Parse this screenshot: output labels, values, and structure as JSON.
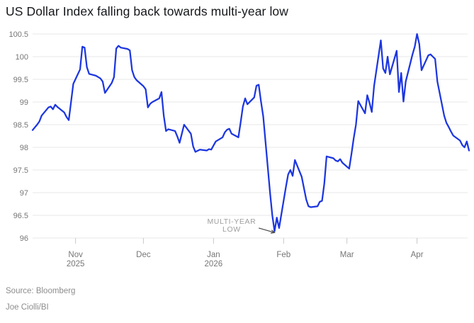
{
  "chart_data": {
    "type": "line",
    "title": "US Dollar Index falling back towards multi-year low",
    "xlabel": "",
    "ylabel": "",
    "ylim": [
      96,
      100.5
    ],
    "x_domain": [
      "2025-10-13",
      "2026-04-24"
    ],
    "grid": "horizontal",
    "legend": "none",
    "yticks": [
      {
        "v": 100.5,
        "label": "100.5"
      },
      {
        "v": 100,
        "label": "100"
      },
      {
        "v": 99.5,
        "label": "99.5"
      },
      {
        "v": 99,
        "label": "99"
      },
      {
        "v": 98.5,
        "label": "98.5"
      },
      {
        "v": 98,
        "label": "98"
      },
      {
        "v": 97.5,
        "label": "97.5"
      },
      {
        "v": 97,
        "label": "97"
      },
      {
        "v": 96.5,
        "label": "96.5"
      },
      {
        "v": 96,
        "label": "96"
      }
    ],
    "xticks": [
      {
        "date": "2025-11-01",
        "lines": [
          "Nov",
          "2025"
        ]
      },
      {
        "date": "2025-12-01",
        "lines": [
          "Dec"
        ]
      },
      {
        "date": "2026-01-01",
        "lines": [
          "Jan",
          "2026"
        ]
      },
      {
        "date": "2026-02-01",
        "lines": [
          "Feb"
        ]
      },
      {
        "date": "2026-03-01",
        "lines": [
          "Mar"
        ]
      },
      {
        "date": "2026-04-01",
        "lines": [
          "Apr"
        ]
      }
    ],
    "series": [
      {
        "name": "US Dollar Index",
        "color": "#1c36e0",
        "points": [
          [
            "2025-10-13",
            98.38
          ],
          [
            "2025-10-14",
            98.44
          ],
          [
            "2025-10-15",
            98.5
          ],
          [
            "2025-10-16",
            98.57
          ],
          [
            "2025-10-17",
            98.7
          ],
          [
            "2025-10-20",
            98.88
          ],
          [
            "2025-10-21",
            98.9
          ],
          [
            "2025-10-22",
            98.84
          ],
          [
            "2025-10-23",
            98.94
          ],
          [
            "2025-10-24",
            98.89
          ],
          [
            "2025-10-27",
            98.77
          ],
          [
            "2025-10-28",
            98.67
          ],
          [
            "2025-10-29",
            98.6
          ],
          [
            "2025-10-30",
            99.0
          ],
          [
            "2025-10-31",
            99.4
          ],
          [
            "2025-11-03",
            99.72
          ],
          [
            "2025-11-04",
            100.22
          ],
          [
            "2025-11-05",
            100.2
          ],
          [
            "2025-11-06",
            99.77
          ],
          [
            "2025-11-07",
            99.62
          ],
          [
            "2025-11-10",
            99.58
          ],
          [
            "2025-11-11",
            99.55
          ],
          [
            "2025-11-12",
            99.52
          ],
          [
            "2025-11-13",
            99.45
          ],
          [
            "2025-11-14",
            99.2
          ],
          [
            "2025-11-17",
            99.42
          ],
          [
            "2025-11-18",
            99.55
          ],
          [
            "2025-11-19",
            100.18
          ],
          [
            "2025-11-20",
            100.24
          ],
          [
            "2025-11-21",
            100.2
          ],
          [
            "2025-11-24",
            100.17
          ],
          [
            "2025-11-25",
            100.14
          ],
          [
            "2025-11-26",
            99.7
          ],
          [
            "2025-11-27",
            99.55
          ],
          [
            "2025-11-28",
            99.48
          ],
          [
            "2025-12-01",
            99.35
          ],
          [
            "2025-12-02",
            99.28
          ],
          [
            "2025-12-03",
            98.88
          ],
          [
            "2025-12-04",
            98.96
          ],
          [
            "2025-12-05",
            99.0
          ],
          [
            "2025-12-08",
            99.08
          ],
          [
            "2025-12-09",
            99.22
          ],
          [
            "2025-12-10",
            98.7
          ],
          [
            "2025-12-11",
            98.36
          ],
          [
            "2025-12-12",
            98.4
          ],
          [
            "2025-12-15",
            98.36
          ],
          [
            "2025-12-16",
            98.24
          ],
          [
            "2025-12-17",
            98.1
          ],
          [
            "2025-12-18",
            98.3
          ],
          [
            "2025-12-19",
            98.5
          ],
          [
            "2025-12-22",
            98.3
          ],
          [
            "2025-12-23",
            98.02
          ],
          [
            "2025-12-24",
            97.9
          ],
          [
            "2025-12-26",
            97.95
          ],
          [
            "2025-12-29",
            97.93
          ],
          [
            "2025-12-30",
            97.96
          ],
          [
            "2025-12-31",
            97.95
          ],
          [
            "2026-01-02",
            98.13
          ],
          [
            "2026-01-05",
            98.22
          ],
          [
            "2026-01-06",
            98.33
          ],
          [
            "2026-01-07",
            98.39
          ],
          [
            "2026-01-08",
            98.41
          ],
          [
            "2026-01-09",
            98.3
          ],
          [
            "2026-01-12",
            98.22
          ],
          [
            "2026-01-13",
            98.55
          ],
          [
            "2026-01-14",
            98.9
          ],
          [
            "2026-01-15",
            99.08
          ],
          [
            "2026-01-16",
            98.95
          ],
          [
            "2026-01-19",
            99.1
          ],
          [
            "2026-01-20",
            99.36
          ],
          [
            "2026-01-21",
            99.38
          ],
          [
            "2026-01-22",
            99.01
          ],
          [
            "2026-01-23",
            98.68
          ],
          [
            "2026-01-26",
            97.0
          ],
          [
            "2026-01-27",
            96.5
          ],
          [
            "2026-01-28",
            96.15
          ],
          [
            "2026-01-29",
            96.45
          ],
          [
            "2026-01-30",
            96.22
          ],
          [
            "2026-02-02",
            97.12
          ],
          [
            "2026-02-03",
            97.4
          ],
          [
            "2026-02-04",
            97.5
          ],
          [
            "2026-02-05",
            97.37
          ],
          [
            "2026-02-06",
            97.72
          ],
          [
            "2026-02-09",
            97.35
          ],
          [
            "2026-02-10",
            97.1
          ],
          [
            "2026-02-11",
            96.85
          ],
          [
            "2026-02-12",
            96.7
          ],
          [
            "2026-02-13",
            96.68
          ],
          [
            "2026-02-16",
            96.7
          ],
          [
            "2026-02-17",
            96.8
          ],
          [
            "2026-02-18",
            96.82
          ],
          [
            "2026-02-19",
            97.2
          ],
          [
            "2026-02-20",
            97.8
          ],
          [
            "2026-02-23",
            97.76
          ],
          [
            "2026-02-24",
            97.71
          ],
          [
            "2026-02-25",
            97.69
          ],
          [
            "2026-02-26",
            97.74
          ],
          [
            "2026-02-27",
            97.66
          ],
          [
            "2026-03-02",
            97.53
          ],
          [
            "2026-03-03",
            97.85
          ],
          [
            "2026-03-04",
            98.2
          ],
          [
            "2026-03-05",
            98.5
          ],
          [
            "2026-03-06",
            99.02
          ],
          [
            "2026-03-09",
            98.75
          ],
          [
            "2026-03-10",
            99.15
          ],
          [
            "2026-03-11",
            98.98
          ],
          [
            "2026-03-12",
            98.78
          ],
          [
            "2026-03-13",
            99.35
          ],
          [
            "2026-03-16",
            100.36
          ],
          [
            "2026-03-17",
            99.74
          ],
          [
            "2026-03-18",
            99.64
          ],
          [
            "2026-03-19",
            100.0
          ],
          [
            "2026-03-20",
            99.61
          ],
          [
            "2026-03-23",
            100.13
          ],
          [
            "2026-03-24",
            99.22
          ],
          [
            "2026-03-25",
            99.64
          ],
          [
            "2026-03-26",
            99.01
          ],
          [
            "2026-03-27",
            99.45
          ],
          [
            "2026-03-30",
            100.05
          ],
          [
            "2026-03-31",
            100.22
          ],
          [
            "2026-04-01",
            100.5
          ],
          [
            "2026-04-02",
            100.28
          ],
          [
            "2026-04-03",
            99.7
          ],
          [
            "2026-04-06",
            100.03
          ],
          [
            "2026-04-07",
            100.05
          ],
          [
            "2026-04-08",
            100.0
          ],
          [
            "2026-04-09",
            99.95
          ],
          [
            "2026-04-10",
            99.45
          ],
          [
            "2026-04-13",
            98.7
          ],
          [
            "2026-04-14",
            98.54
          ],
          [
            "2026-04-15",
            98.45
          ],
          [
            "2026-04-16",
            98.35
          ],
          [
            "2026-04-17",
            98.26
          ],
          [
            "2026-04-20",
            98.15
          ],
          [
            "2026-04-21",
            98.05
          ],
          [
            "2026-04-22",
            98.0
          ],
          [
            "2026-04-23",
            98.13
          ],
          [
            "2026-04-24",
            97.93
          ]
        ]
      }
    ],
    "annotation": {
      "lines": [
        "MULTI-YEAR",
        "LOW"
      ],
      "text_anchor": {
        "d": "2026-01-09",
        "v": 96.28
      },
      "arrow": {
        "from": {
          "d": "2026-01-21",
          "v": 96.22
        },
        "to": {
          "d": "2026-01-28",
          "v": 96.12
        }
      },
      "points_to": {
        "d": "2026-01-28",
        "v": 96.15
      }
    }
  },
  "footer": {
    "source": "Source: Bloomberg",
    "byline": "Joe Ciolli/BI"
  },
  "colors": {
    "line": "#1c36e0",
    "grid": "#e7e7e7",
    "tick": "#c8c8c8",
    "axis_text": "#767676",
    "title_text": "#15171a",
    "annotation_text": "#9e9e9e",
    "arrow": "#4a4a4a",
    "footer_text": "#8d8d8d"
  }
}
